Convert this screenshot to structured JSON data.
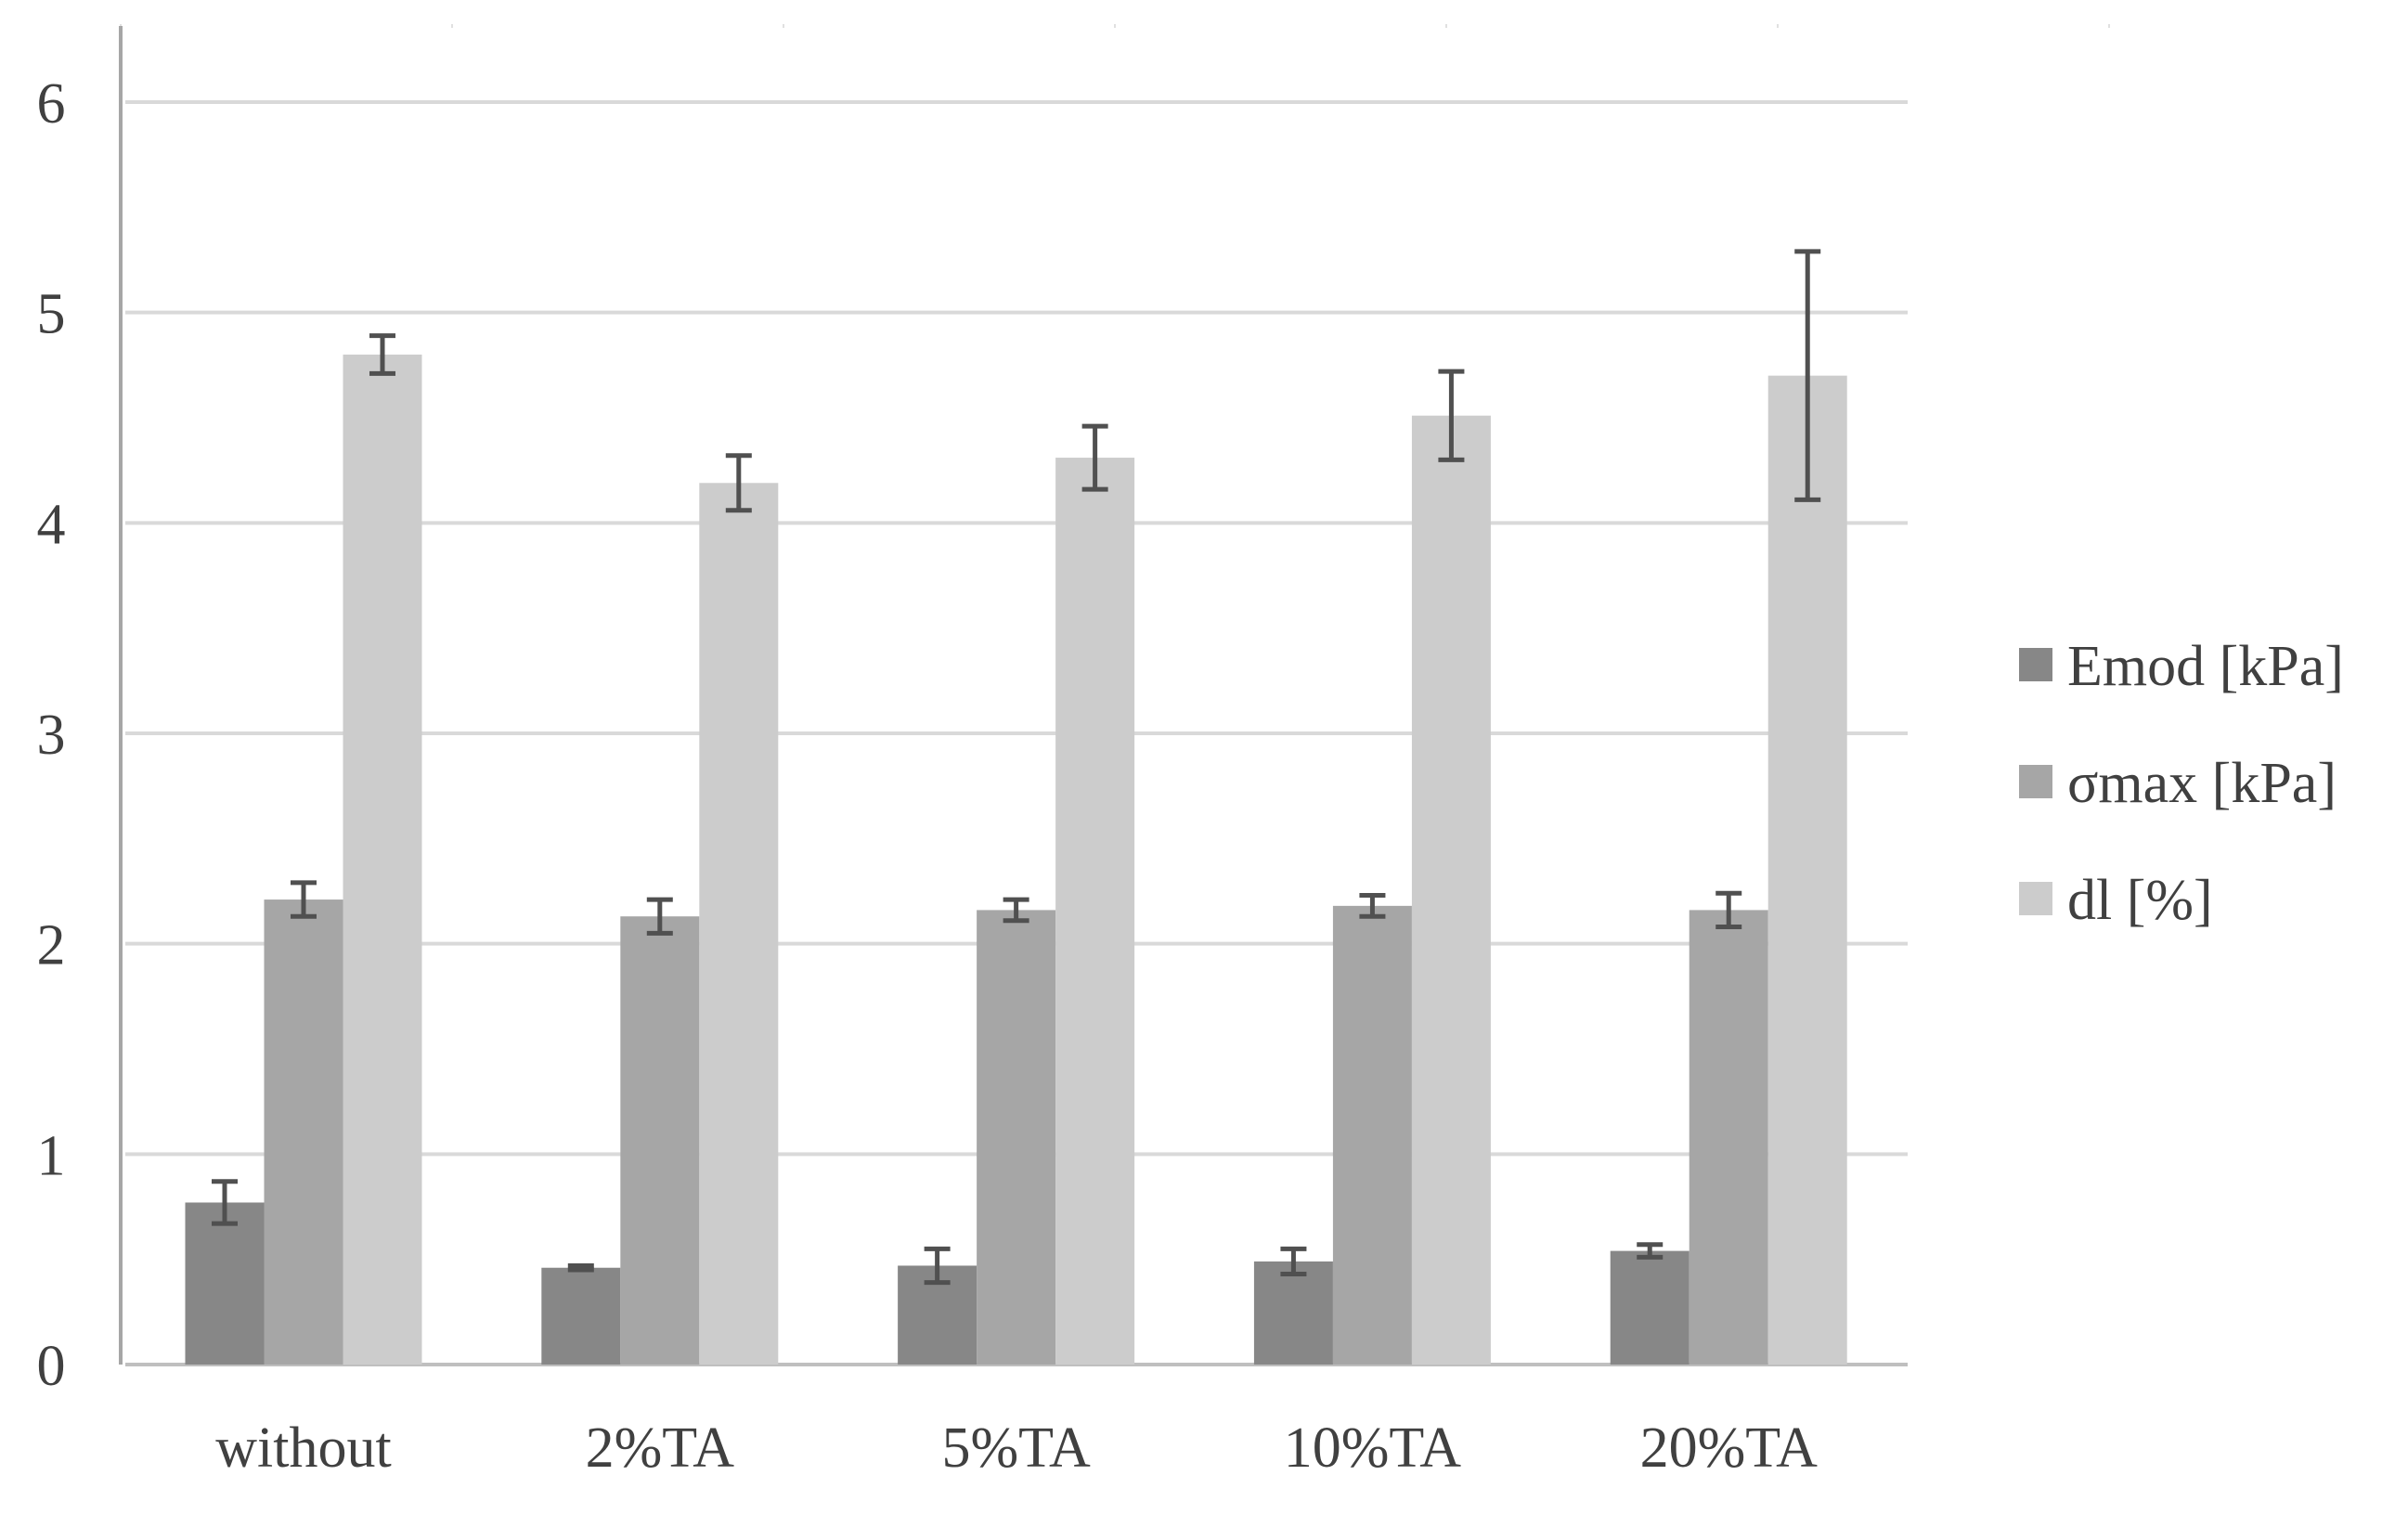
{
  "chart_data": {
    "type": "bar",
    "title": "",
    "xlabel": "",
    "ylabel": "",
    "categories": [
      "without",
      "2%TA",
      "5%TA",
      "10%TA",
      "20%TA"
    ],
    "ylim": [
      0,
      6
    ],
    "yticks": [
      "0",
      "1",
      "2",
      "3",
      "4",
      "5",
      "6"
    ],
    "grid": true,
    "legend_position": "right",
    "series": [
      {
        "name": "Emod [kPa]",
        "color": "#878787",
        "values": [
          0.77,
          0.46,
          0.47,
          0.49,
          0.54
        ],
        "errors": [
          0.1,
          0.01,
          0.08,
          0.06,
          0.03
        ]
      },
      {
        "name": "σmax [kPa]",
        "color": "#a6a6a6",
        "values": [
          2.21,
          2.13,
          2.16,
          2.18,
          2.16
        ],
        "errors": [
          0.08,
          0.08,
          0.05,
          0.05,
          0.08
        ]
      },
      {
        "name": "dl [%]",
        "color": "#cccccc",
        "values": [
          4.8,
          4.19,
          4.31,
          4.51,
          4.7
        ],
        "errors": [
          0.09,
          0.13,
          0.15,
          0.21,
          0.59
        ]
      }
    ]
  }
}
